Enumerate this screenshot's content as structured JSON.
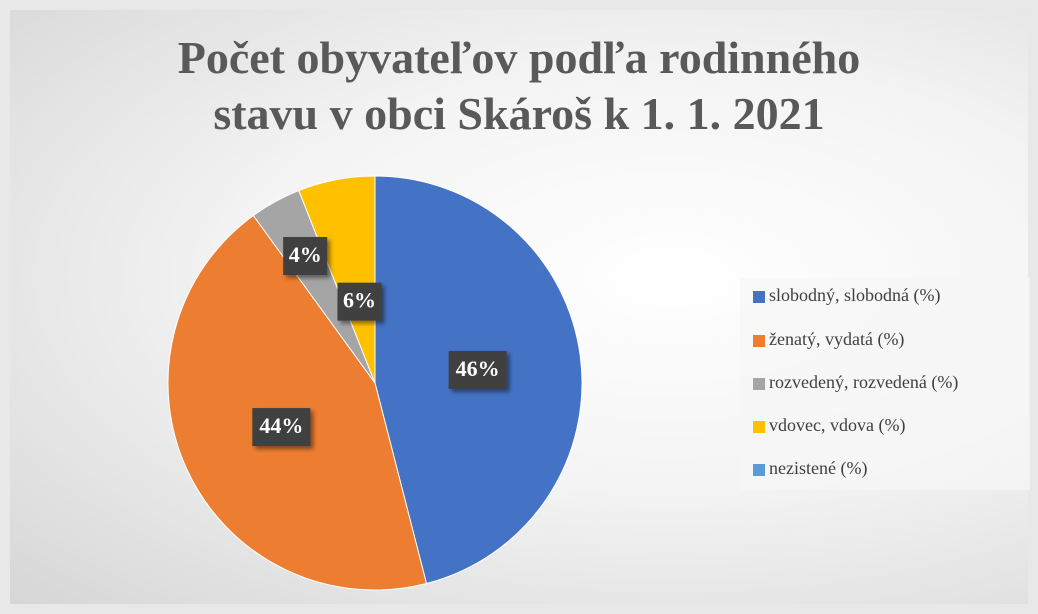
{
  "chart_data": {
    "type": "pie",
    "title": "Počet obyvateľov podľa rodinného stavu v obci Skároš k 1. 1. 2021",
    "categories": [
      "slobodný, slobodná (%)",
      "ženatý, vydatá (%)",
      "rozvedený, rozvedená (%)",
      "vdovec, vdova (%)",
      "nezistené (%)"
    ],
    "values": [
      46,
      44,
      4,
      6,
      0
    ],
    "value_labels": [
      "46%",
      "44%",
      "4%",
      "6%",
      null
    ],
    "colors": [
      "#4472c4",
      "#ed7d31",
      "#a5a5a5",
      "#ffc000",
      "#5b9bd5"
    ],
    "legend": "right"
  }
}
